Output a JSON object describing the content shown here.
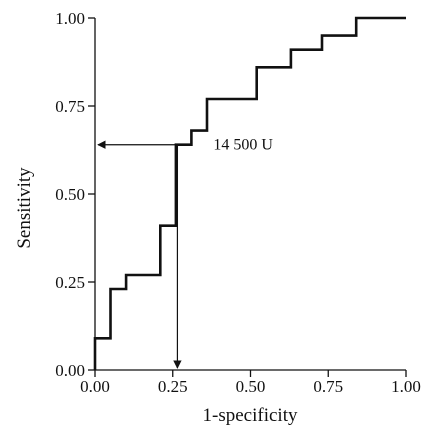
{
  "chart_data": {
    "type": "line",
    "title": "",
    "xlabel": "1-specificity",
    "ylabel": "Sensitivity",
    "xlim": [
      0,
      1
    ],
    "ylim": [
      0,
      1
    ],
    "x_ticks": [
      "0.00",
      "0.25",
      "0.50",
      "0.75",
      "1.00"
    ],
    "y_ticks": [
      "0.00",
      "0.25",
      "0.50",
      "0.75",
      "1.00"
    ],
    "grid": false,
    "legend": "none",
    "series": [
      {
        "style": "step",
        "x": [
          0.0,
          0.0,
          0.05,
          0.05,
          0.1,
          0.1,
          0.21,
          0.21,
          0.26,
          0.26,
          0.31,
          0.31,
          0.36,
          0.36,
          0.52,
          0.52,
          0.63,
          0.63,
          0.73,
          0.73,
          0.84,
          0.84,
          1.0
        ],
        "y": [
          0.0,
          0.09,
          0.09,
          0.23,
          0.23,
          0.27,
          0.27,
          0.41,
          0.41,
          0.64,
          0.64,
          0.68,
          0.68,
          0.77,
          0.77,
          0.86,
          0.86,
          0.91,
          0.91,
          0.95,
          0.95,
          1.0,
          1.0
        ]
      }
    ],
    "annotations": [
      {
        "text": "14 500 U",
        "x": 0.265,
        "y": 0.64
      }
    ],
    "colors": {
      "line": "#111111"
    }
  }
}
